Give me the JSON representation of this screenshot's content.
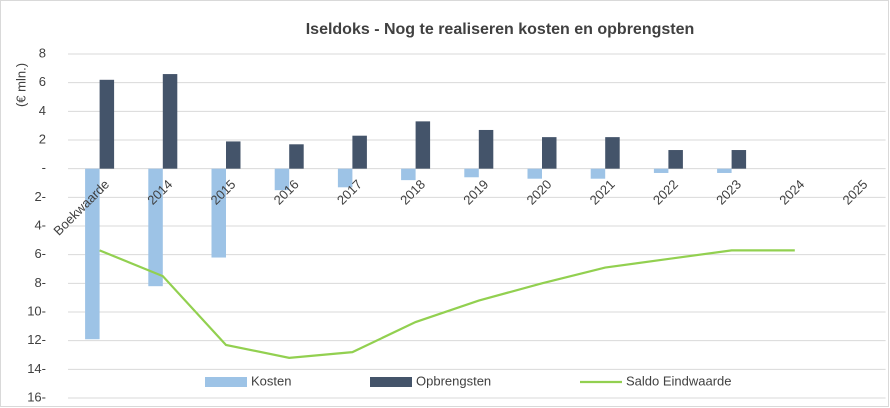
{
  "chart_data": {
    "type": "bar",
    "title": "Iseldoks - Nog te realiseren kosten en opbrengsten",
    "y_label": "(€ mln.)",
    "categories": [
      "Boekwaarde",
      "2014",
      "2015",
      "2016",
      "2017",
      "2018",
      "2019",
      "2020",
      "2021",
      "2022",
      "2023",
      "2024",
      "2025"
    ],
    "series": [
      {
        "name": "Kosten",
        "type": "bar",
        "color": "#9dc3e6",
        "values": [
          -11.9,
          -8.2,
          -6.2,
          -1.5,
          -1.3,
          -0.8,
          -0.6,
          -0.7,
          -0.7,
          -0.3,
          -0.3,
          0,
          0
        ]
      },
      {
        "name": "Opbrengsten",
        "type": "bar",
        "color": "#44546a",
        "values": [
          6.2,
          6.6,
          1.9,
          1.7,
          2.3,
          3.3,
          2.7,
          2.2,
          2.2,
          1.3,
          1.3,
          0,
          0
        ]
      },
      {
        "name": "Saldo Eindwaarde",
        "type": "line",
        "color": "#92d050",
        "values": [
          -5.7,
          -7.5,
          -12.3,
          -13.2,
          -12.8,
          -10.7,
          -9.2,
          -8.0,
          -6.9,
          -6.3,
          -5.7,
          -5.7,
          null
        ]
      }
    ],
    "ylim": [
      -16,
      8
    ],
    "yticks": [
      8,
      6,
      4,
      2,
      {
        "value": 0,
        "label": "-"
      },
      {
        "value": -2,
        "label": "2-"
      },
      {
        "value": -4,
        "label": "4-"
      },
      {
        "value": -6,
        "label": "6-"
      },
      {
        "value": -8,
        "label": "8-"
      },
      {
        "value": -10,
        "label": "10-"
      },
      {
        "value": -12,
        "label": "12-"
      },
      {
        "value": -14,
        "label": "14-"
      },
      {
        "value": -16,
        "label": "16-"
      }
    ],
    "grid": true,
    "legend": "bottom"
  }
}
